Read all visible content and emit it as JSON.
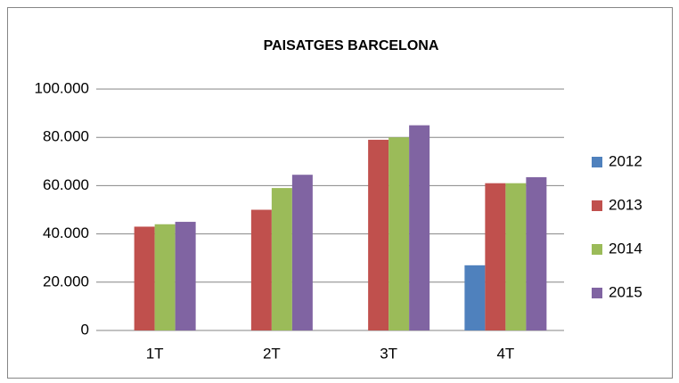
{
  "chart_data": {
    "type": "bar",
    "title": "PAISATGES  BARCELONA",
    "categories": [
      "1T",
      "2T",
      "3T",
      "4T"
    ],
    "series": [
      {
        "name": "2012",
        "color": "#4f81bd",
        "values": [
          null,
          null,
          null,
          27000
        ]
      },
      {
        "name": "2013",
        "color": "#c0504d",
        "values": [
          43000,
          50000,
          79000,
          61000
        ]
      },
      {
        "name": "2014",
        "color": "#9bbb59",
        "values": [
          44000,
          59000,
          80000,
          61000
        ]
      },
      {
        "name": "2015",
        "color": "#8064a2",
        "values": [
          45000,
          64500,
          85000,
          63500
        ]
      }
    ],
    "ylim": [
      0,
      100000
    ],
    "yticks": [
      0,
      {
        "value": 20000,
        "label": "20.000"
      },
      {
        "value": 40000,
        "label": "40.000"
      },
      {
        "value": 60000,
        "label": "60.000"
      },
      {
        "value": 80000,
        "label": "80.000"
      },
      {
        "value": 100000,
        "label": "100.000"
      }
    ],
    "grid": true,
    "legend": "right"
  }
}
